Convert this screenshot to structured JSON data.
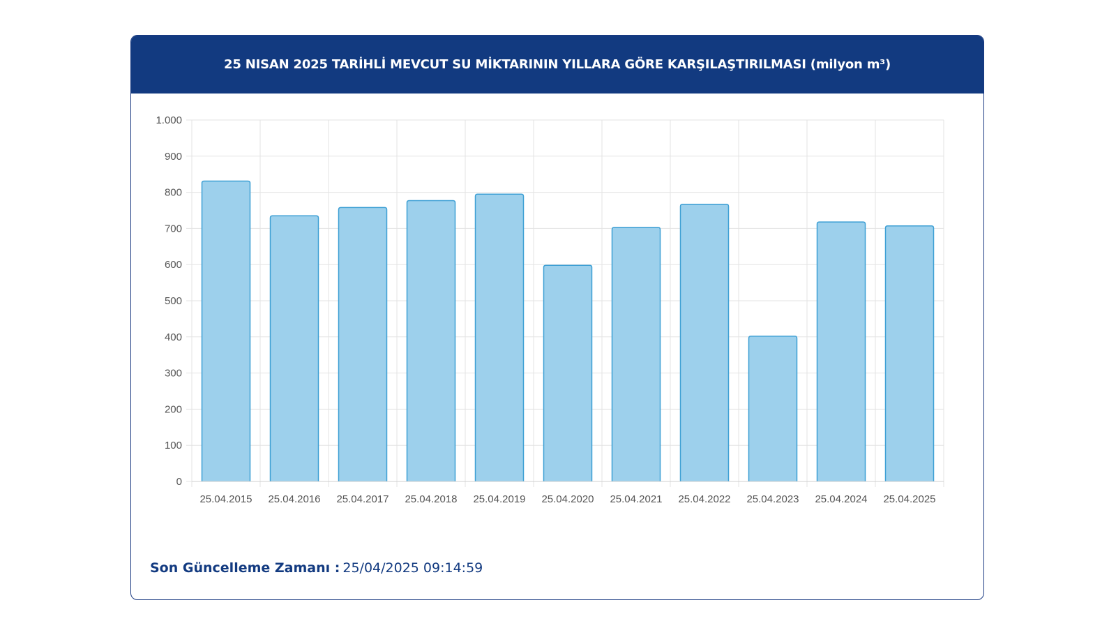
{
  "header": {
    "title": "25 NISAN 2025 TARİHLİ MEVCUT SU MİKTARININ YILLARA GÖRE KARŞILAŞTIRILMASI (milyon m³)"
  },
  "footer": {
    "label": "Son Güncelleme Zamanı :",
    "value": "25/04/2025 09:14:59"
  },
  "colors": {
    "header_bg": "#123a80",
    "bar_fill": "#9dd0ec",
    "bar_stroke": "#3d9fd4",
    "grid": "#e3e3e3",
    "footer_text": "#123a80"
  },
  "chart_data": {
    "type": "bar",
    "title": "25 NISAN 2025 TARİHLİ MEVCUT SU MİKTARININ YILLARA GÖRE KARŞILAŞTIRILMASI (milyon m³)",
    "xlabel": "",
    "ylabel": "",
    "categories": [
      "25.04.2015",
      "25.04.2016",
      "25.04.2017",
      "25.04.2018",
      "25.04.2019",
      "25.04.2020",
      "25.04.2021",
      "25.04.2022",
      "25.04.2023",
      "25.04.2024",
      "25.04.2025"
    ],
    "values": [
      831,
      735,
      758,
      777,
      795,
      598,
      703,
      767,
      402,
      718,
      707
    ],
    "ylim": [
      0,
      1000
    ],
    "yticks": [
      0,
      100,
      200,
      300,
      400,
      500,
      600,
      700,
      800,
      900,
      1000
    ],
    "ytick_labels": [
      "0",
      "100",
      "200",
      "300",
      "400",
      "500",
      "600",
      "700",
      "800",
      "900",
      "1.000"
    ],
    "grid": true,
    "legend": "none"
  }
}
